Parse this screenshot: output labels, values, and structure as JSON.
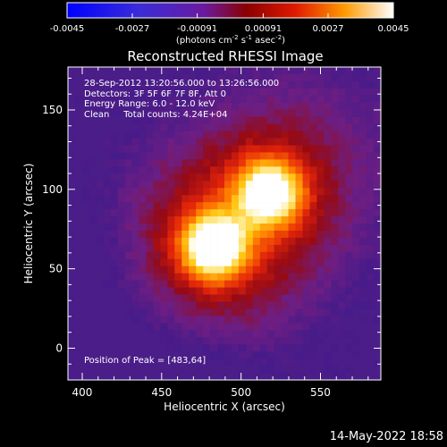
{
  "chart_data": {
    "type": "heatmap",
    "title": "Reconstructed RHESSI Image",
    "xlabel": "Heliocentric X (arcsec)",
    "ylabel": "Heliocentric Y (arcsec)",
    "xlim": [
      391,
      588
    ],
    "ylim": [
      -20,
      177
    ],
    "xticks": [
      400,
      450,
      500,
      550
    ],
    "yticks": [
      0,
      50,
      100,
      150
    ],
    "colorbar": {
      "min": -0.0045,
      "max": 0.0045,
      "ticks": [
        "-0.0045",
        "-0.0027",
        "-0.00091",
        "0.00091",
        "0.0027",
        "0.0045"
      ],
      "label_prefix": "(photons cm",
      "label_sup1": "-2",
      "label_mid": " s",
      "label_sup2": "-1",
      "label_mid2": " asec",
      "label_sup3": "-2",
      "label_suffix": ")"
    },
    "sources": [
      {
        "x": 483,
        "y": 64,
        "value": 0.0045
      },
      {
        "x": 518,
        "y": 98,
        "value": 0.0041
      }
    ],
    "annotations": [
      "28-Sep-2012 13:20:56.000 to 13:26:56.000",
      "Detectors: 3F 5F 6F 7F 8F, Att 0",
      "Energy Range: 6.0 - 12.0 keV",
      "Clean     Total counts: 4.24E+04"
    ],
    "peak_label": "Position of Peak = [483,64]"
  },
  "footer": {
    "date_stamp": "14-May-2022 18:58"
  }
}
